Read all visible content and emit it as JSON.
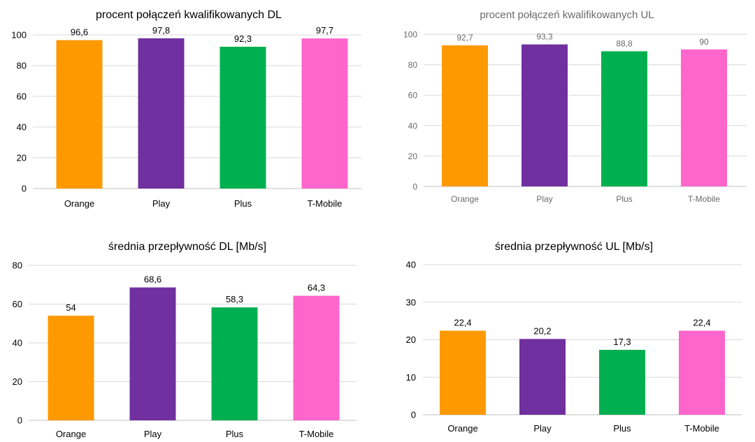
{
  "chart_data": [
    {
      "type": "bar",
      "title": "procent połączeń kwalifikowanych DL",
      "categories": [
        "Orange",
        "Play",
        "Plus",
        "T-Mobile"
      ],
      "values": [
        96.6,
        97.8,
        92.3,
        97.7
      ],
      "labels": [
        "96,6",
        "97,8",
        "92,3",
        "97,7"
      ],
      "ylim": [
        0,
        100
      ],
      "yticks": [
        0,
        20,
        40,
        60,
        80,
        100
      ],
      "grid": true,
      "xlabel": "",
      "ylabel": ""
    },
    {
      "type": "bar",
      "title": "procent połączeń kwalifikowanych UL",
      "categories": [
        "Orange",
        "Play",
        "Plus",
        "T-Mobile"
      ],
      "values": [
        92.7,
        93.3,
        88.8,
        90
      ],
      "labels": [
        "92,7",
        "93,3",
        "88,8",
        "90"
      ],
      "ylim": [
        0,
        100
      ],
      "yticks": [
        0,
        20,
        40,
        60,
        80,
        100
      ],
      "grid": true,
      "xlabel": "",
      "ylabel": ""
    },
    {
      "type": "bar",
      "title": "średnia przepływność DL [Mb/s]",
      "categories": [
        "Orange",
        "Play",
        "Plus",
        "T-Mobile"
      ],
      "values": [
        54,
        68.6,
        58.3,
        64.3
      ],
      "labels": [
        "54",
        "68,6",
        "58,3",
        "64,3"
      ],
      "ylim": [
        0,
        80
      ],
      "yticks": [
        0,
        20,
        40,
        60,
        80
      ],
      "grid": true,
      "xlabel": "",
      "ylabel": ""
    },
    {
      "type": "bar",
      "title": "średnia przepływność UL [Mb/s]",
      "categories": [
        "Orange",
        "Play",
        "Plus",
        "T-Mobile"
      ],
      "values": [
        22.4,
        20.2,
        17.3,
        22.4
      ],
      "labels": [
        "22,4",
        "20,2",
        "17,3",
        "22,4"
      ],
      "ylim": [
        0,
        40
      ],
      "yticks": [
        0,
        10,
        20,
        30,
        40
      ],
      "grid": true,
      "xlabel": "",
      "ylabel": ""
    }
  ],
  "colors": {
    "Orange": "#ff9900",
    "Play": "#7030a0",
    "Plus": "#00b050",
    "T-Mobile": "#ff66cc",
    "grid": "#d9d9d9",
    "axis": "#bfbfbf"
  }
}
